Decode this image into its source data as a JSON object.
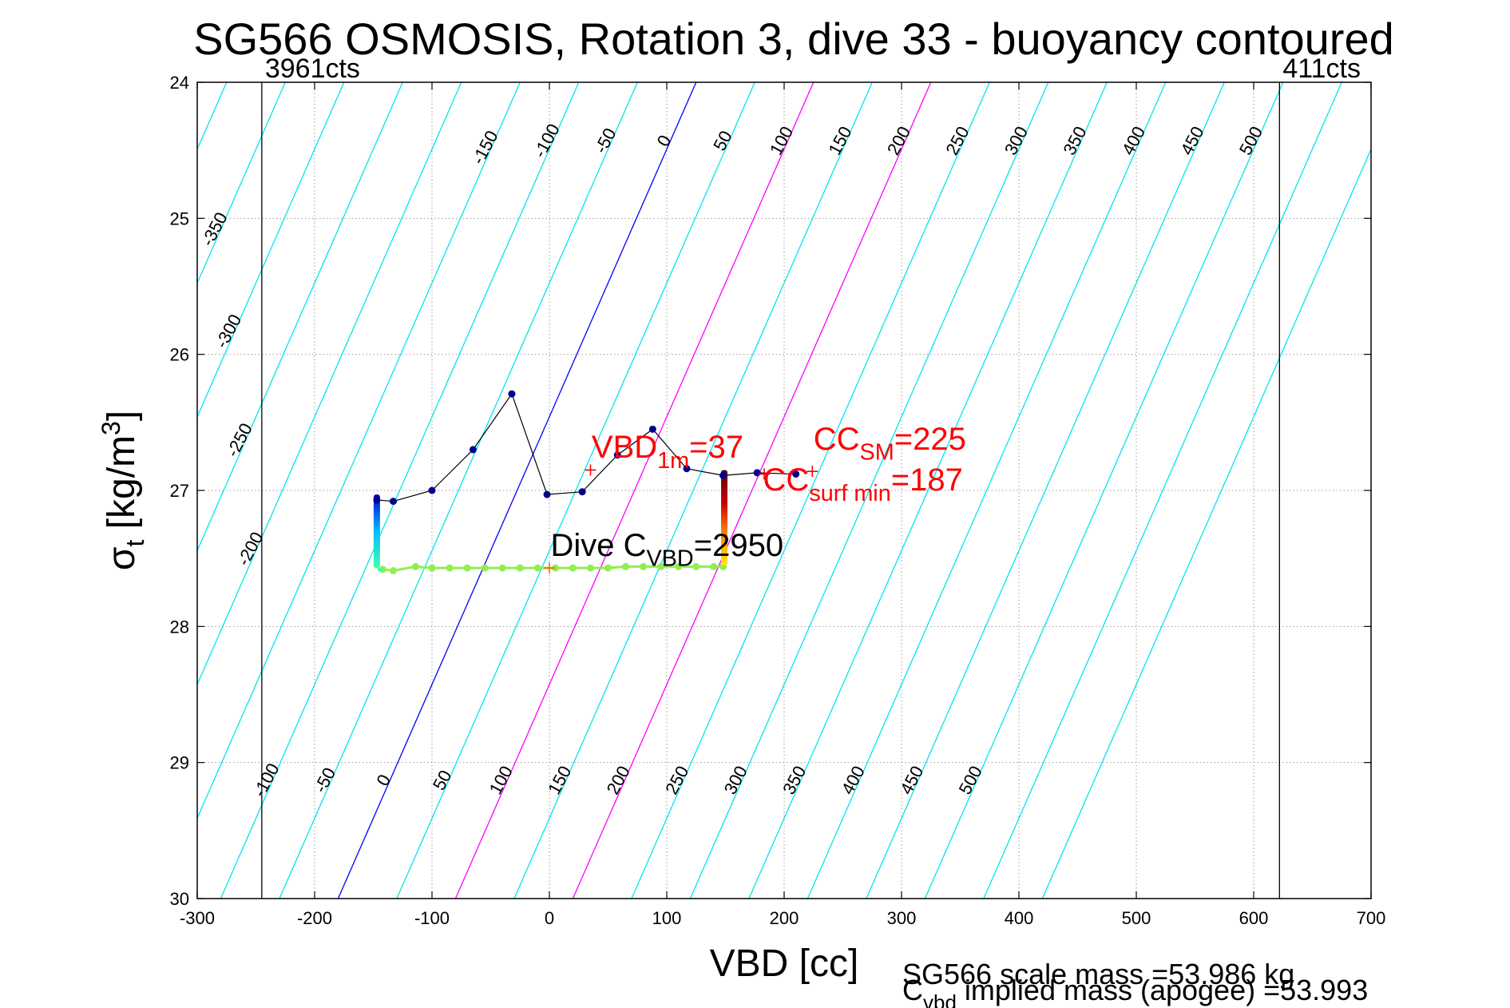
{
  "chart_data": {
    "type": "line",
    "title": "SG566 OSMOSIS, Rotation 3, dive 33 - buoyancy contoured",
    "xlabel": "VBD [cc]",
    "ylabel": {
      "main": "σ",
      "sub": "t",
      "unit_pre": " [kg/m",
      "sup": "3",
      "unit_post": "]"
    },
    "xlim": [
      -300,
      700
    ],
    "ylim": [
      24,
      30
    ],
    "y_reversed": true,
    "grid": true,
    "x_ticks": [
      -300,
      -200,
      -100,
      0,
      100,
      200,
      300,
      400,
      500,
      600,
      700
    ],
    "y_ticks": [
      24,
      25,
      26,
      27,
      28,
      29,
      30
    ],
    "x_tick_labels": [
      "-300",
      "-200",
      "-100",
      "0",
      "100",
      "200",
      "300",
      "400",
      "500",
      "600",
      "700"
    ],
    "y_tick_labels": [
      "24",
      "25",
      "26",
      "27",
      "28",
      "29",
      "30"
    ],
    "colors": {
      "contour": "#00e5ee",
      "zero_contour": "#0000ff",
      "limit_contour": "#ff00ff",
      "annotation": "#ff0000",
      "track_line": "#000000",
      "track_point": "#00008b",
      "surface_point": "#90ee50"
    },
    "limit_lines": [
      {
        "x": -245,
        "label": "3961cts"
      },
      {
        "x": 622,
        "label": "411cts"
      }
    ],
    "contours": {
      "levels": [
        -350,
        -300,
        -250,
        -200,
        -150,
        -100,
        -50,
        0,
        50,
        100,
        150,
        200,
        250,
        300,
        350,
        400,
        450,
        500
      ],
      "highlight_zero": 0,
      "highlight_limits": [
        100,
        200
      ],
      "top_labels": [
        "-350",
        "-300",
        "-250",
        "-200",
        "-150",
        "-100",
        "-50",
        "0",
        "50",
        "100",
        "150",
        "200",
        "250",
        "300",
        "350",
        "400",
        "450",
        "500"
      ],
      "bottom_labels": [
        "-100",
        "-50",
        "0",
        "50",
        "100",
        "150",
        "200",
        "250",
        "300",
        "350",
        "400",
        "450",
        "500"
      ]
    },
    "series": [
      {
        "points": [
          {
            "x": -147,
            "y": 27.07
          },
          {
            "x": -133,
            "y": 27.08
          },
          {
            "x": -100,
            "y": 27.0
          },
          {
            "x": -65,
            "y": 26.7
          },
          {
            "x": -32,
            "y": 26.29
          },
          {
            "x": -2,
            "y": 27.03
          },
          {
            "x": 28,
            "y": 27.01
          },
          {
            "x": 58,
            "y": 26.74
          },
          {
            "x": 88,
            "y": 26.55
          },
          {
            "x": 117,
            "y": 26.84
          },
          {
            "x": 148,
            "y": 26.89
          },
          {
            "x": 177,
            "y": 26.87
          },
          {
            "x": 210,
            "y": 26.88
          }
        ]
      }
    ],
    "profile_points": [
      {
        "x": -147,
        "y": 27.03
      },
      {
        "x": -147,
        "y": 27.1
      },
      {
        "x": -147,
        "y": 27.18
      },
      {
        "x": -147,
        "y": 27.26
      },
      {
        "x": -147,
        "y": 27.34
      },
      {
        "x": -147,
        "y": 27.42
      },
      {
        "x": -146,
        "y": 27.5
      },
      {
        "x": -145,
        "y": 27.57
      }
    ],
    "surface_points": [
      {
        "x": -142,
        "y": 27.58
      },
      {
        "x": -133,
        "y": 27.59
      },
      {
        "x": -114,
        "y": 27.56
      },
      {
        "x": -100,
        "y": 27.57
      },
      {
        "x": -85,
        "y": 27.57
      },
      {
        "x": -70,
        "y": 27.57
      },
      {
        "x": -55,
        "y": 27.57
      },
      {
        "x": -40,
        "y": 27.57
      },
      {
        "x": -25,
        "y": 27.57
      },
      {
        "x": -10,
        "y": 27.57
      },
      {
        "x": 5,
        "y": 27.57
      },
      {
        "x": 20,
        "y": 27.57
      },
      {
        "x": 35,
        "y": 27.57
      },
      {
        "x": 50,
        "y": 27.57
      },
      {
        "x": 65,
        "y": 27.56
      },
      {
        "x": 80,
        "y": 27.56
      },
      {
        "x": 95,
        "y": 27.56
      },
      {
        "x": 110,
        "y": 27.56
      },
      {
        "x": 125,
        "y": 27.56
      },
      {
        "x": 140,
        "y": 27.56
      },
      {
        "x": 148,
        "y": 27.56
      }
    ],
    "apogee_bar": {
      "x": 149,
      "y_top": 26.85,
      "y_bottom": 27.55
    },
    "markers": [
      {
        "x": 35,
        "y": 26.85,
        "color": "#ff0000"
      },
      {
        "x": 183,
        "y": 26.88,
        "color": "#ff0000"
      },
      {
        "x": 224,
        "y": 26.86,
        "color": "#ff0000"
      },
      {
        "x": 0,
        "y": 27.57,
        "color": "#ff6600"
      }
    ],
    "annotations": [
      {
        "base": "VBD",
        "sub": "1m",
        "rest": "=37",
        "x": 36,
        "y": 26.76,
        "color": "#ff0000"
      },
      {
        "base": "CC",
        "sub": "SM",
        "rest": "=225",
        "x": 225,
        "y": 26.7,
        "color": "#ff0000"
      },
      {
        "base": "CC",
        "sub": "surf min",
        "rest": "=187",
        "x": 182,
        "y": 27.0,
        "color": "#ff0000"
      },
      {
        "base": "Dive C",
        "sub": "VBD",
        "rest": "=2950",
        "x": 1,
        "y": 27.48,
        "color": "#000000"
      }
    ],
    "footer": {
      "scale_mass": "SG566 scale mass =53.986 kg",
      "implied_base": "C",
      "implied_sub": "vbd",
      "implied_rest": " implied mass (apogee) =53.993"
    }
  }
}
